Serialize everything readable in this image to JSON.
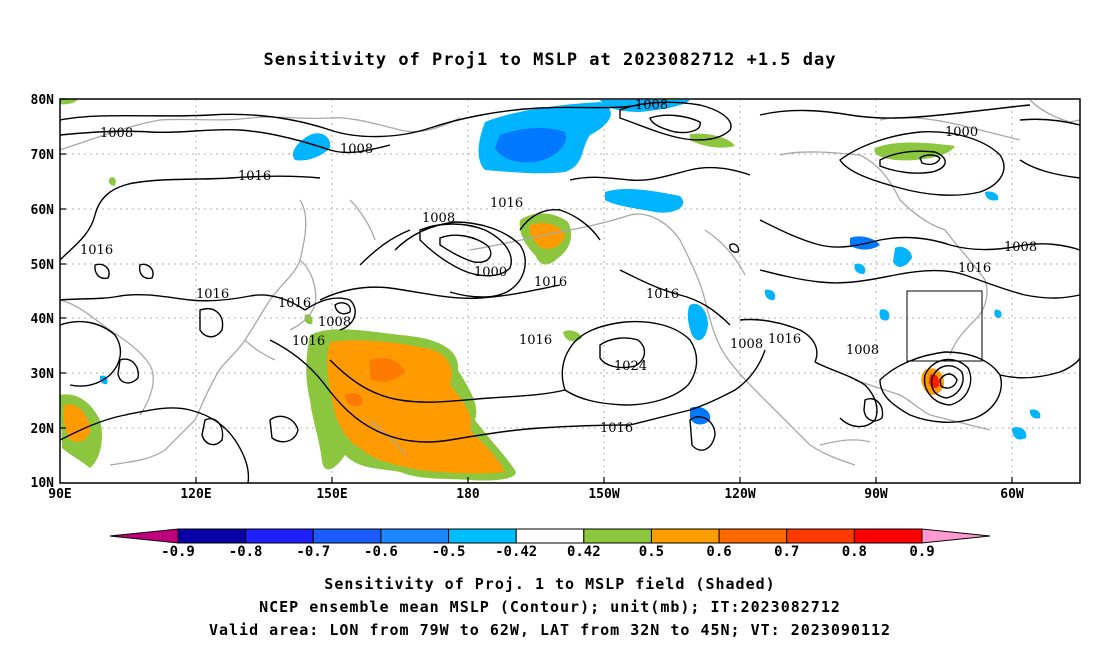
{
  "map": {
    "title": "Sensitivity of Proj1 to MSLP at 2023082712 +1.5 day",
    "lat_ticks": [
      "80N",
      "70N",
      "60N",
      "50N",
      "40N",
      "30N",
      "20N",
      "10N"
    ],
    "lon_ticks": [
      "90E",
      "120E",
      "150E",
      "180",
      "150W",
      "120W",
      "90W",
      "60W"
    ],
    "contour_labels": [
      "1008",
      "1008",
      "1008",
      "1016",
      "1016",
      "1008",
      "1016",
      "1016",
      "1016",
      "1000",
      "1016",
      "1016",
      "1008",
      "1016",
      "1016",
      "1024",
      "1016",
      "1008",
      "1016",
      "1008",
      "1000",
      "1008",
      "1016",
      "1016"
    ],
    "colors": {
      "lightgreen": "#8cc63f",
      "orange": "#ff9a00",
      "darkorange": "#ff6a00",
      "red": "#ff1a00",
      "lightblue": "#00b4ff",
      "blue": "#0078ff",
      "coast": "#a8a8a8"
    }
  },
  "colorbar": {
    "labels": [
      "-0.9",
      "-0.8",
      "-0.7",
      "-0.6",
      "-0.5",
      "-0.42",
      "0.42",
      "0.5",
      "0.6",
      "0.7",
      "0.8",
      "0.9"
    ],
    "colors": [
      "#c0007c",
      "#0a00a8",
      "#1e1eff",
      "#1c5cff",
      "#1a87ff",
      "#00beff",
      "#ffffff",
      "#8cc63f",
      "#ff9c00",
      "#ff6a00",
      "#ff3a00",
      "#ff0000",
      "#ff9ad0"
    ]
  },
  "captions": {
    "line1": "Sensitivity of Proj. 1 to MSLP field (Shaded)",
    "line2": "NCEP ensemble mean MSLP (Contour); unit(mb); IT:2023082712",
    "line3": "Valid area: LON from 79W to 62W, LAT from 32N to 45N; VT: 2023090112"
  }
}
